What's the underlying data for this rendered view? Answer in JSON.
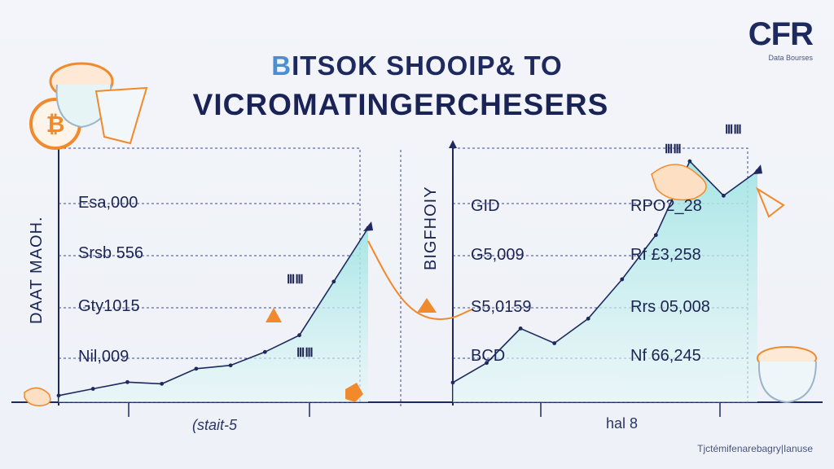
{
  "logo": {
    "mark": "CFR",
    "sub": "Data Bourses"
  },
  "title": {
    "line1_accent": "B",
    "line1_rest": "ITSOK SHOOIP& TO",
    "line2": "VICROMATINGERCHESERS"
  },
  "left_chart": {
    "vertical_label": "DAAT MAOH.",
    "xlabel": "(stait-5",
    "rows": [
      "Esa,000",
      "Srsb 556",
      "Gty1015",
      "Nil,009"
    ],
    "badges": [
      "ⅢⅢ",
      "ⅢⅢ"
    ]
  },
  "right_chart": {
    "vertical_label": "BIGFHOIY",
    "xlabel": "hal 8",
    "rows_left": [
      "GID",
      "G5,009",
      "S5,0159",
      "BCD"
    ],
    "rows_right": [
      "RPO2_28",
      "Rf £3,258",
      "Rrs 05,008",
      "Nf 66,245"
    ],
    "badges": [
      "ⅢⅢ",
      "ⅢⅢ"
    ]
  },
  "footer": "Tjctémifenarebagry|Ianuse",
  "colors": {
    "navy": "#1e2a5e",
    "teal_fill": "#bfeeee",
    "orange": "#f08a2c",
    "grid": "#3b4a8c"
  },
  "chart_data": [
    {
      "type": "area",
      "title": "",
      "series": [
        {
          "values": [
            2,
            4,
            6,
            5.5,
            10,
            11,
            15,
            20,
            36,
            52
          ]
        }
      ]
    },
    {
      "type": "area",
      "title": "",
      "series": [
        {
          "values": [
            34,
            38,
            45,
            42,
            47,
            55,
            64,
            79,
            72,
            77
          ]
        }
      ]
    }
  ]
}
